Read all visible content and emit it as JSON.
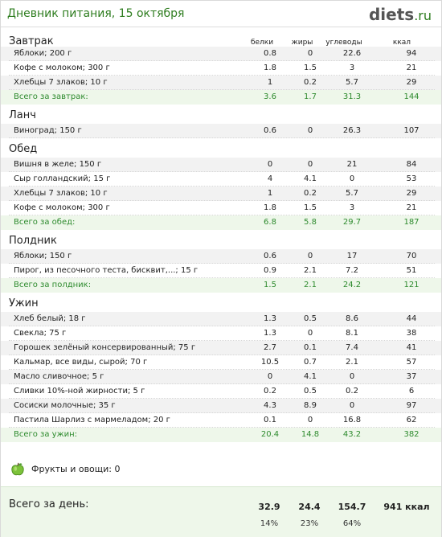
{
  "header": {
    "title": "Дневник питания, 15 октября",
    "logo_main": "diets",
    "logo_suffix": ".ru"
  },
  "columns": [
    "белки",
    "жиры",
    "углеводы",
    "ккал"
  ],
  "meals": [
    {
      "name": "Завтрак",
      "items": [
        {
          "name": "Яблоки; 200 г",
          "values": [
            "0.8",
            "0",
            "22.6",
            "94"
          ]
        },
        {
          "name": "Кофе с молоком; 300 г",
          "values": [
            "1.8",
            "1.5",
            "3",
            "21"
          ]
        },
        {
          "name": "Хлебцы 7 злаков; 10 г",
          "values": [
            "1",
            "0.2",
            "5.7",
            "29"
          ]
        }
      ],
      "total": {
        "label": "Всего за завтрак:",
        "values": [
          "3.6",
          "1.7",
          "31.3",
          "144"
        ]
      }
    },
    {
      "name": "Ланч",
      "items": [
        {
          "name": "Виноград; 150 г",
          "values": [
            "0.6",
            "0",
            "26.3",
            "107"
          ]
        }
      ],
      "total": null
    },
    {
      "name": "Обед",
      "items": [
        {
          "name": "Вишня в желе; 150 г",
          "values": [
            "0",
            "0",
            "21",
            "84"
          ]
        },
        {
          "name": "Сыр голландский; 15 г",
          "values": [
            "4",
            "4.1",
            "0",
            "53"
          ]
        },
        {
          "name": "Хлебцы 7 злаков; 10 г",
          "values": [
            "1",
            "0.2",
            "5.7",
            "29"
          ]
        },
        {
          "name": "Кофе с молоком; 300 г",
          "values": [
            "1.8",
            "1.5",
            "3",
            "21"
          ]
        }
      ],
      "total": {
        "label": "Всего за обед:",
        "values": [
          "6.8",
          "5.8",
          "29.7",
          "187"
        ]
      }
    },
    {
      "name": "Полдник",
      "items": [
        {
          "name": "Яблоки; 150 г",
          "values": [
            "0.6",
            "0",
            "17",
            "70"
          ]
        },
        {
          "name": "Пирог, из песочного теста, бисквит,...; 15 г",
          "values": [
            "0.9",
            "2.1",
            "7.2",
            "51"
          ]
        }
      ],
      "total": {
        "label": "Всего за полдник:",
        "values": [
          "1.5",
          "2.1",
          "24.2",
          "121"
        ]
      }
    },
    {
      "name": "Ужин",
      "items": [
        {
          "name": "Хлеб белый; 18 г",
          "values": [
            "1.3",
            "0.5",
            "8.6",
            "44"
          ]
        },
        {
          "name": "Свекла; 75 г",
          "values": [
            "1.3",
            "0",
            "8.1",
            "38"
          ]
        },
        {
          "name": "Горошек зелёный консервированный; 75 г",
          "values": [
            "2.7",
            "0.1",
            "7.4",
            "41"
          ]
        },
        {
          "name": "Кальмар, все виды, сырой; 70 г",
          "values": [
            "10.5",
            "0.7",
            "2.1",
            "57"
          ]
        },
        {
          "name": "Масло сливочное; 5 г",
          "values": [
            "0",
            "4.1",
            "0",
            "37"
          ]
        },
        {
          "name": "Сливки 10%-ной жирности; 5 г",
          "values": [
            "0.2",
            "0.5",
            "0.2",
            "6"
          ]
        },
        {
          "name": "Сосиски молочные; 35 г",
          "values": [
            "4.3",
            "8.9",
            "0",
            "97"
          ]
        },
        {
          "name": "Пастила Шарлиз с мармеладом; 20 г",
          "values": [
            "0.1",
            "0",
            "16.8",
            "62"
          ]
        }
      ],
      "total": {
        "label": "Всего за ужин:",
        "values": [
          "20.4",
          "14.8",
          "43.2",
          "382"
        ]
      }
    }
  ],
  "fruits": {
    "label": "Фрукты и овощи: 0",
    "icon": "apple-icon"
  },
  "day": {
    "label": "Всего за день:",
    "values": [
      "32.9",
      "24.4",
      "154.7",
      "941 ккал"
    ],
    "percents": [
      "14%",
      "23%",
      "64%"
    ]
  },
  "colors": {
    "accent": "#2e7d1f",
    "total_text": "#2e8b2e",
    "total_bg": "#eef7ea"
  }
}
